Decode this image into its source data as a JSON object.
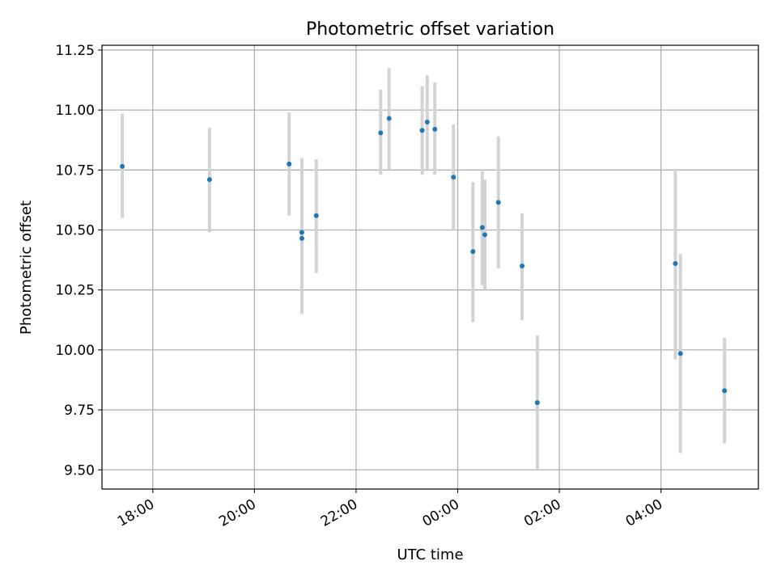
{
  "chart_data": {
    "type": "scatter",
    "title": "Photometric offset variation",
    "xlabel": "UTC time",
    "ylabel": "Photometric offset",
    "x_axis_type": "time",
    "x_tick_labels": [
      "18:00",
      "20:00",
      "22:00",
      "00:00",
      "02:00",
      "04:00"
    ],
    "y_tick_labels": [
      "9.50",
      "9.75",
      "10.00",
      "10.25",
      "10.50",
      "10.75",
      "11.00",
      "11.25"
    ],
    "xlim": [
      "17:00",
      "05:55"
    ],
    "ylim": [
      9.42,
      11.27
    ],
    "y_ticks": [
      9.5,
      9.75,
      10.0,
      10.25,
      10.5,
      10.75,
      11.0,
      11.25
    ],
    "grid": true,
    "marker_color": "#1f77b4",
    "errorbar_color": "#d3d3d3",
    "series": [
      {
        "points": [
          {
            "x": "17:24",
            "y": 10.765,
            "yerr_low": 10.55,
            "yerr_high": 10.985
          },
          {
            "x": "19:07",
            "y": 10.71,
            "yerr_low": 10.49,
            "yerr_high": 10.925
          },
          {
            "x": "20:41",
            "y": 10.775,
            "yerr_low": 10.56,
            "yerr_high": 10.99
          },
          {
            "x": "20:56",
            "y": 10.49,
            "yerr_low": 10.15,
            "yerr_high": 10.8
          },
          {
            "x": "20:56",
            "y": 10.465,
            "yerr_low": 10.15,
            "yerr_high": 10.8
          },
          {
            "x": "21:13",
            "y": 10.56,
            "yerr_low": 10.32,
            "yerr_high": 10.795
          },
          {
            "x": "22:29",
            "y": 10.905,
            "yerr_low": 10.73,
            "yerr_high": 11.085
          },
          {
            "x": "22:39",
            "y": 10.965,
            "yerr_low": 10.75,
            "yerr_high": 11.175
          },
          {
            "x": "23:18",
            "y": 10.915,
            "yerr_low": 10.73,
            "yerr_high": 11.1
          },
          {
            "x": "23:24",
            "y": 10.95,
            "yerr_low": 10.75,
            "yerr_high": 11.145
          },
          {
            "x": "23:33",
            "y": 10.92,
            "yerr_low": 10.73,
            "yerr_high": 11.115
          },
          {
            "x": "23:55",
            "y": 10.72,
            "yerr_low": 10.5,
            "yerr_high": 10.94
          },
          {
            "x": "00:18",
            "y": 10.41,
            "yerr_low": 10.115,
            "yerr_high": 10.7
          },
          {
            "x": "00:29",
            "y": 10.51,
            "yerr_low": 10.27,
            "yerr_high": 10.745
          },
          {
            "x": "00:32",
            "y": 10.48,
            "yerr_low": 10.25,
            "yerr_high": 10.71
          },
          {
            "x": "00:48",
            "y": 10.615,
            "yerr_low": 10.34,
            "yerr_high": 10.89
          },
          {
            "x": "01:16",
            "y": 10.35,
            "yerr_low": 10.125,
            "yerr_high": 10.57
          },
          {
            "x": "01:34",
            "y": 9.78,
            "yerr_low": 9.5,
            "yerr_high": 10.06
          },
          {
            "x": "04:17",
            "y": 10.36,
            "yerr_low": 9.96,
            "yerr_high": 10.755
          },
          {
            "x": "04:23",
            "y": 9.985,
            "yerr_low": 9.57,
            "yerr_high": 10.4
          },
          {
            "x": "05:15",
            "y": 9.83,
            "yerr_low": 9.61,
            "yerr_high": 10.05
          }
        ]
      }
    ]
  }
}
